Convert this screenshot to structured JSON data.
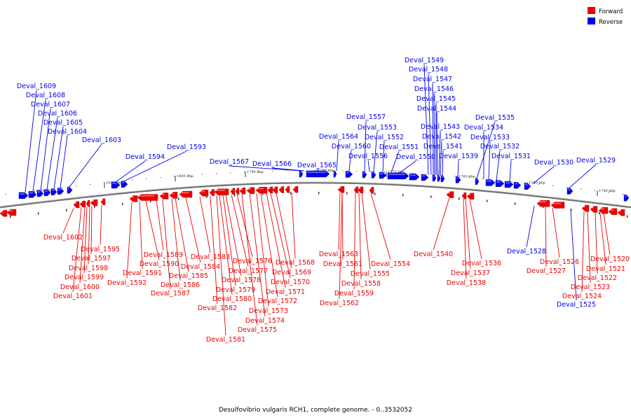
{
  "caption": "Desulfovibrio vulgaris RCH1, complete genome. - 0..3532052",
  "legend": [
    {
      "label": "Forward",
      "color": "#ee0000"
    },
    {
      "label": "Reverse",
      "color": "#0000ee"
    }
  ],
  "colors": {
    "forward": "#ee0000",
    "reverse": "#0000ee",
    "backbone": "#6a6a6a"
  },
  "ticks": [
    "1820 kbp",
    "1810 kbp",
    "1800 kbp",
    "1790 kbp",
    "1780 kbp",
    "1770 kbp",
    "1760 kbp",
    "1750 kbp",
    "1740 kbp"
  ],
  "reverse_labels": [
    "Deval_1609",
    "Deval_1608",
    "Deval_1607",
    "Deval_1606",
    "Deval_1605",
    "Deval_1604",
    "Deval_1603",
    "Deval_1594",
    "Deval_1593",
    "Deval_1567",
    "Deval_1566",
    "Deval_1565",
    "Deval_1564",
    "Deval_1560",
    "Deval_1557",
    "Deval_1553",
    "Deval_1556",
    "Deval_1552",
    "Deval_1551",
    "Deval_1550",
    "Deval_1549",
    "Deval_1548",
    "Deval_1547",
    "Deval_1546",
    "Deval_1545",
    "Deval_1544",
    "Deval_1543",
    "Deval_1542",
    "Deval_1541",
    "Deval_1539",
    "Deval_1535",
    "Deval_1534",
    "Deval_1533",
    "Deval_1532",
    "Deval_1531",
    "Deval_1530",
    "Deval_1529",
    "Deval_1528",
    "Deval_1525"
  ],
  "forward_labels": [
    "Deval_1602",
    "Deval_1595",
    "Deval_1597",
    "Deval_1598",
    "Deval_1599",
    "Deval_1600",
    "Deval_1601",
    "Deval_1592",
    "Deval_1591",
    "Deval_1590",
    "Deval_1589",
    "Deval_1587",
    "Deval_1586",
    "Deval_1585",
    "Deval_1584",
    "Deval_1583",
    "Deval_1582",
    "Deval_1581",
    "Deval_1580",
    "Deval_1579",
    "Deval_1578",
    "Deval_1577",
    "Deval_1576",
    "Deval_1575",
    "Deval_1574",
    "Deval_1573",
    "Deval_1572",
    "Deval_1571",
    "Deval_1570",
    "Deval_1569",
    "Deval_1568",
    "Deval_1563",
    "Deval_1561",
    "Deval_1562",
    "Deval_1559",
    "Deval_1558",
    "Deval_1555",
    "Deval_1554",
    "Deval_1540",
    "Deval_1538",
    "Deval_1537",
    "Deval_1536",
    "Deval_1527",
    "Deval_1526",
    "Deval_1524",
    "Deval_1523",
    "Deval_1522",
    "Deval_1521",
    "Deval_1520"
  ]
}
